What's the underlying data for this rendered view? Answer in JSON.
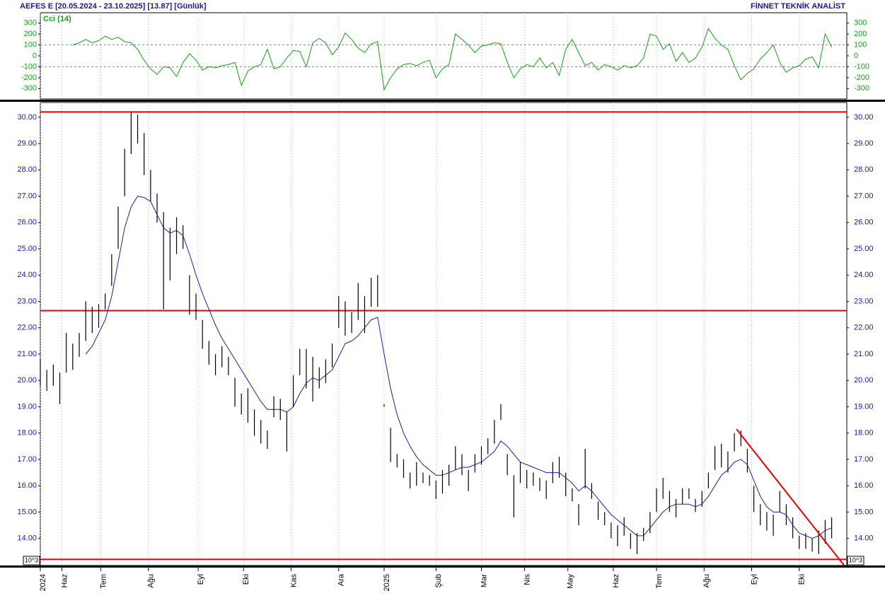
{
  "header": {
    "title": "AEFES E  [20.05.2024 - 23.10.2025]  [13.87]  [Günlük]",
    "source": "FİNNET TEKNİK ANALİST"
  },
  "chart_data": [
    {
      "type": "line",
      "label": "Cci (14)",
      "color": "#1a9c1a",
      "x": [
        0,
        3,
        6,
        9,
        12,
        15,
        18,
        21,
        24,
        27,
        30,
        33,
        36,
        39,
        42,
        45,
        48,
        51,
        54,
        57,
        60,
        63,
        66,
        69,
        72,
        75,
        78,
        81,
        84,
        87,
        90,
        93,
        96,
        99,
        102,
        105,
        108,
        111,
        114,
        117,
        120,
        123,
        126,
        129,
        132,
        135,
        138,
        141,
        144,
        147,
        150,
        153,
        156,
        159,
        162,
        165,
        168,
        171,
        174,
        177,
        180,
        183,
        186,
        189,
        192,
        195,
        198,
        201,
        204,
        207,
        210,
        213,
        216,
        219,
        222,
        225,
        228,
        231,
        234,
        237,
        240,
        243,
        246,
        249,
        252,
        255,
        258,
        261,
        264,
        267,
        270,
        273,
        276,
        279,
        282,
        285,
        288,
        291,
        294,
        297,
        300,
        303,
        306,
        309,
        312,
        315,
        318,
        321,
        324,
        327,
        330,
        333,
        336,
        339,
        342,
        345,
        348,
        351,
        354,
        357,
        360,
        363,
        366
      ],
      "values": [
        null,
        null,
        null,
        null,
        null,
        100,
        120,
        150,
        120,
        140,
        180,
        150,
        170,
        130,
        120,
        60,
        -40,
        -120,
        -170,
        -100,
        -110,
        -190,
        -60,
        20,
        -40,
        -130,
        -100,
        -110,
        -90,
        -80,
        -60,
        -270,
        -140,
        -100,
        -80,
        60,
        -120,
        -100,
        -20,
        50,
        40,
        -100,
        120,
        160,
        120,
        10,
        80,
        210,
        150,
        70,
        30,
        110,
        130,
        -310,
        -200,
        -120,
        -80,
        -70,
        -90,
        -60,
        -40,
        -200,
        -120,
        -80,
        200,
        150,
        100,
        30,
        90,
        100,
        120,
        110,
        -60,
        -200,
        -120,
        -80,
        -100,
        -20,
        -110,
        -60,
        -180,
        60,
        150,
        30,
        -90,
        -60,
        -130,
        -80,
        -100,
        -130,
        -90,
        -110,
        -90,
        -20,
        200,
        180,
        60,
        110,
        -50,
        30,
        -60,
        -20,
        80,
        250,
        160,
        100,
        60,
        -90,
        -220,
        -160,
        -120,
        -30,
        30,
        100,
        -60,
        -150,
        -110,
        -90,
        -30,
        -10,
        -110,
        200,
        80
      ],
      "xlim": [
        0,
        373
      ],
      "ylim": [
        -395,
        395
      ],
      "yticks": [
        300,
        200,
        100,
        0,
        -100,
        -200,
        -300
      ],
      "ref_lines": [
        100,
        -100
      ]
    },
    {
      "type": "ohlc",
      "color": "#000000",
      "ma_color": "#1f1f9c",
      "hline_color": "#e00000",
      "scale_note": "10^3",
      "x": [
        0,
        3,
        6,
        9,
        12,
        15,
        18,
        21,
        24,
        27,
        30,
        33,
        36,
        39,
        42,
        45,
        48,
        51,
        54,
        57,
        60,
        63,
        66,
        69,
        72,
        75,
        78,
        81,
        84,
        87,
        90,
        93,
        96,
        99,
        102,
        105,
        108,
        111,
        114,
        117,
        120,
        123,
        126,
        129,
        132,
        135,
        138,
        141,
        144,
        147,
        150,
        153,
        156,
        159,
        162,
        165,
        168,
        171,
        174,
        177,
        180,
        183,
        186,
        189,
        192,
        195,
        198,
        201,
        204,
        207,
        210,
        213,
        216,
        219,
        222,
        225,
        228,
        231,
        234,
        237,
        240,
        243,
        246,
        249,
        252,
        255,
        258,
        261,
        264,
        267,
        270,
        273,
        276,
        279,
        282,
        285,
        288,
        291,
        294,
        297,
        300,
        303,
        306,
        309,
        312,
        315,
        318,
        321,
        324,
        327,
        330,
        333,
        336,
        339,
        342,
        345,
        348,
        351,
        354,
        357,
        360,
        363,
        366
      ],
      "high": [
        20.8,
        20.4,
        20.6,
        20.3,
        21.8,
        21.4,
        21.8,
        23.0,
        22.8,
        22.9,
        23.3,
        24.8,
        26.6,
        28.8,
        30.2,
        30.1,
        29.4,
        28.0,
        27.1,
        26.4,
        25.8,
        26.2,
        25.9,
        24.0,
        23.3,
        22.3,
        21.5,
        21.0,
        21.3,
        20.9,
        20.1,
        19.5,
        19.7,
        18.9,
        18.5,
        18.1,
        19.4,
        19.3,
        18.8,
        20.2,
        21.2,
        21.2,
        20.9,
        20.5,
        20.8,
        21.4,
        23.2,
        23.0,
        22.6,
        23.7,
        23.2,
        23.9,
        24.0,
        19.1,
        18.2,
        17.2,
        17.0,
        16.5,
        16.9,
        16.5,
        16.4,
        16.2,
        16.6,
        16.8,
        17.5,
        17.2,
        16.6,
        17.2,
        17.5,
        17.8,
        18.5,
        19.1,
        17.2,
        16.4,
        16.9,
        16.6,
        16.5,
        16.3,
        16.2,
        16.9,
        17.1,
        16.5,
        15.9,
        15.3,
        17.4,
        16.1,
        15.4,
        15.0,
        14.6,
        14.5,
        14.8,
        14.2,
        14.2,
        14.4,
        15.0,
        15.9,
        16.3,
        15.8,
        15.5,
        15.9,
        15.9,
        15.5,
        15.8,
        16.5,
        17.5,
        17.6,
        17.3,
        18.0,
        18.1,
        17.4,
        16.0,
        15.3,
        15.0,
        14.9,
        15.8,
        15.3,
        14.8,
        14.1,
        14.2,
        14.0,
        14.3,
        14.7,
        14.8
      ],
      "low": [
        19.8,
        19.6,
        19.8,
        19.1,
        20.3,
        20.4,
        20.9,
        21.5,
        21.8,
        22.0,
        22.7,
        23.6,
        25.0,
        27.0,
        28.6,
        29.0,
        27.8,
        26.8,
        26.0,
        22.7,
        23.8,
        24.8,
        25.0,
        22.5,
        22.3,
        21.2,
        20.6,
        20.2,
        20.5,
        20.2,
        19.0,
        18.7,
        18.4,
        17.9,
        17.6,
        17.4,
        18.6,
        18.5,
        17.3,
        19.0,
        20.2,
        19.7,
        19.2,
        19.7,
        19.9,
        20.5,
        22.0,
        21.7,
        21.8,
        22.3,
        21.8,
        22.8,
        22.8,
        19.0,
        16.9,
        16.7,
        16.3,
        15.9,
        16.0,
        16.1,
        16.0,
        15.5,
        15.7,
        16.0,
        16.6,
        16.4,
        15.8,
        16.5,
        16.8,
        17.2,
        17.6,
        18.5,
        16.4,
        14.8,
        16.1,
        15.9,
        16.0,
        15.8,
        15.5,
        16.1,
        16.3,
        15.6,
        15.4,
        14.5,
        15.9,
        15.5,
        14.7,
        14.5,
        14.0,
        13.7,
        14.1,
        13.6,
        13.4,
        13.9,
        14.2,
        15.0,
        15.5,
        15.0,
        14.8,
        15.3,
        15.5,
        15.0,
        15.2,
        15.9,
        16.6,
        16.7,
        16.5,
        17.3,
        17.5,
        16.5,
        15.0,
        14.5,
        14.3,
        14.1,
        15.0,
        14.5,
        14.0,
        13.6,
        13.6,
        13.5,
        13.4,
        13.8,
        14.0
      ],
      "ma": [
        null,
        null,
        null,
        null,
        null,
        null,
        null,
        21.0,
        21.3,
        21.8,
        22.3,
        23.2,
        24.5,
        25.8,
        26.6,
        27.0,
        26.95,
        26.8,
        26.3,
        25.8,
        25.6,
        25.7,
        25.5,
        24.8,
        24.0,
        23.3,
        22.7,
        22.1,
        21.6,
        21.2,
        20.8,
        20.4,
        20.0,
        19.6,
        19.2,
        18.9,
        18.9,
        18.9,
        18.8,
        19.0,
        19.5,
        19.9,
        20.1,
        20.0,
        20.2,
        20.4,
        20.9,
        21.4,
        21.5,
        21.7,
        22.0,
        22.3,
        22.4,
        21.0,
        19.7,
        18.7,
        18.0,
        17.5,
        17.1,
        16.8,
        16.6,
        16.4,
        16.4,
        16.5,
        16.6,
        16.7,
        16.7,
        16.8,
        16.9,
        17.1,
        17.3,
        17.7,
        17.5,
        17.2,
        16.9,
        16.8,
        16.7,
        16.6,
        16.5,
        16.5,
        16.5,
        16.3,
        16.1,
        15.8,
        16.0,
        15.8,
        15.5,
        15.2,
        14.9,
        14.7,
        14.5,
        14.3,
        14.1,
        14.1,
        14.4,
        14.7,
        15.0,
        15.2,
        15.3,
        15.3,
        15.3,
        15.2,
        15.3,
        15.6,
        16.0,
        16.4,
        16.6,
        16.9,
        17.0,
        16.8,
        16.2,
        15.6,
        15.2,
        15.0,
        15.0,
        14.9,
        14.5,
        14.2,
        14.1,
        14.0,
        14.1,
        14.3,
        14.4
      ],
      "hlines": [
        30.2,
        22.65,
        13.2
      ],
      "trendline": {
        "x": [
          322,
          372
        ],
        "y": [
          18.15,
          12.95
        ]
      },
      "xlim": [
        0,
        373
      ],
      "ylim": [
        12.97,
        30.56
      ],
      "yticks": [
        {
          "value": 14,
          "label": "14.00"
        },
        {
          "value": 15,
          "label": "15.00"
        },
        {
          "value": 16,
          "label": "16.00"
        },
        {
          "value": 17,
          "label": "17.00"
        },
        {
          "value": 18,
          "label": "18.00"
        },
        {
          "value": 19,
          "label": "19.00"
        },
        {
          "value": 20,
          "label": "20.00"
        },
        {
          "value": 21,
          "label": "21.00"
        },
        {
          "value": 22,
          "label": "22.00"
        },
        {
          "value": 23,
          "label": "23.00"
        },
        {
          "value": 24,
          "label": "24.00"
        },
        {
          "value": 25,
          "label": "25.00"
        },
        {
          "value": 26,
          "label": "26.00"
        },
        {
          "value": 27,
          "label": "27.00"
        },
        {
          "value": 28,
          "label": "28.00"
        },
        {
          "value": 29,
          "label": "29.00"
        },
        {
          "value": 30,
          "label": "30.00"
        }
      ],
      "xticks": [
        {
          "value": 0,
          "label": "2024"
        },
        {
          "value": 10,
          "label": "Haz"
        },
        {
          "value": 28,
          "label": "Tem"
        },
        {
          "value": 50,
          "label": "Ağu"
        },
        {
          "value": 73,
          "label": "Eyl"
        },
        {
          "value": 94,
          "label": "Eki"
        },
        {
          "value": 116,
          "label": "Kas"
        },
        {
          "value": 138,
          "label": "Ara"
        },
        {
          "value": 159,
          "label": "2025"
        },
        {
          "value": 183,
          "label": "Şub"
        },
        {
          "value": 204,
          "label": "Mar"
        },
        {
          "value": 224,
          "label": "Nis"
        },
        {
          "value": 244,
          "label": "May"
        },
        {
          "value": 265,
          "label": "Haz"
        },
        {
          "value": 285,
          "label": "Tem"
        },
        {
          "value": 307,
          "label": "Ağu"
        },
        {
          "value": 329,
          "label": "Eyl"
        },
        {
          "value": 351,
          "label": "Eki"
        }
      ]
    }
  ]
}
